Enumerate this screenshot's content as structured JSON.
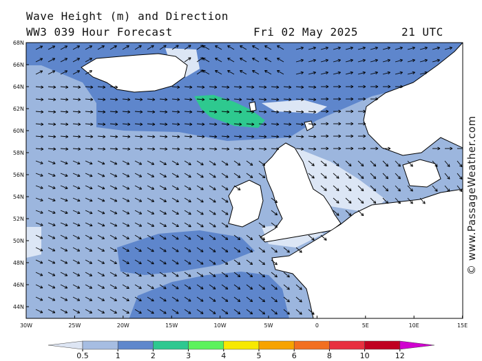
{
  "header": {
    "title_line1": "Wave Height (m) and Direction",
    "title_line2": "WW3 039 Hour Forecast",
    "date": "Fri 02 May 2025",
    "time": "21 UTC"
  },
  "credit": "© www.PassageWeather.com",
  "latitude_labels": [
    "68N",
    "66N",
    "64N",
    "62N",
    "60N",
    "58N",
    "56N",
    "54N",
    "52N",
    "50N",
    "48N",
    "46N",
    "44N"
  ],
  "longitude_labels": [
    "30W",
    "25W",
    "20W",
    "15W",
    "10W",
    "5W",
    "0",
    "5E",
    "10E",
    "15E"
  ],
  "colors": {
    "band_0_5_1": "#dce6f5",
    "band_1_2": "#9cb6de",
    "band_2_3": "#5e86cc",
    "band_3_4": "#2ec98f",
    "land": "#ffffff",
    "coast": "#000000"
  },
  "color_scale": {
    "labels": [
      "0.5",
      "1",
      "2",
      "3",
      "4",
      "5",
      "6",
      "8",
      "10",
      "12"
    ],
    "colors": [
      "#dde5f3",
      "#a6bde2",
      "#5f87cc",
      "#2ec890",
      "#5cf25c",
      "#f7e900",
      "#f7a300",
      "#f26f20",
      "#e83040",
      "#c00020",
      "#d000d0"
    ]
  }
}
